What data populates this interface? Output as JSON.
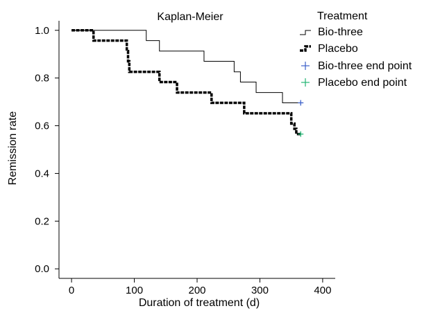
{
  "chart_data": {
    "type": "line",
    "title": "Kaplan-Meier",
    "xlabel": "Duration of treatment (d)",
    "ylabel": "Remission rate",
    "xlim": [
      -20,
      420
    ],
    "ylim": [
      -0.04,
      1.04
    ],
    "xticks": [
      0,
      100,
      200,
      300,
      400
    ],
    "xtick_labels": [
      "0",
      "100",
      "200",
      "300",
      "400"
    ],
    "yticks": [
      0.0,
      0.2,
      0.4,
      0.6,
      0.8,
      1.0
    ],
    "ytick_labels": [
      "0.0",
      "0.2",
      "0.4",
      "0.6",
      "0.8",
      "1.0"
    ],
    "grid": false,
    "legend": {
      "title": "Treatment",
      "position": "top-right",
      "entries": [
        "Bio-three",
        "Placebo",
        "Bio-three end point",
        "Placebo end point"
      ]
    },
    "series": [
      {
        "name": "Bio-three",
        "step": true,
        "color": "#000000",
        "x": [
          0,
          119,
          119,
          140,
          140,
          211,
          211,
          259,
          259,
          269,
          269,
          294,
          294,
          336,
          336,
          365
        ],
        "y": [
          1.0,
          1.0,
          0.957,
          0.957,
          0.913,
          0.913,
          0.87,
          0.87,
          0.826,
          0.826,
          0.783,
          0.783,
          0.739,
          0.739,
          0.696,
          0.696
        ]
      },
      {
        "name": "Placebo",
        "step": true,
        "color": "#000000",
        "x": [
          0,
          35,
          35,
          88,
          88,
          90,
          90,
          92,
          92,
          140,
          140,
          168,
          168,
          223,
          223,
          275,
          275,
          350,
          350,
          355,
          355,
          358,
          358,
          365
        ],
        "y": [
          1.0,
          1.0,
          0.957,
          0.957,
          0.913,
          0.913,
          0.87,
          0.87,
          0.826,
          0.826,
          0.783,
          0.783,
          0.739,
          0.739,
          0.696,
          0.696,
          0.652,
          0.652,
          0.609,
          0.609,
          0.587,
          0.587,
          0.565,
          0.565
        ]
      }
    ],
    "end_points": [
      {
        "name": "Bio-three end point",
        "x": 365,
        "y": 0.696,
        "color": "#3a5fc8"
      },
      {
        "name": "Placebo end point",
        "x": 365,
        "y": 0.565,
        "color": "#22b573"
      }
    ]
  }
}
